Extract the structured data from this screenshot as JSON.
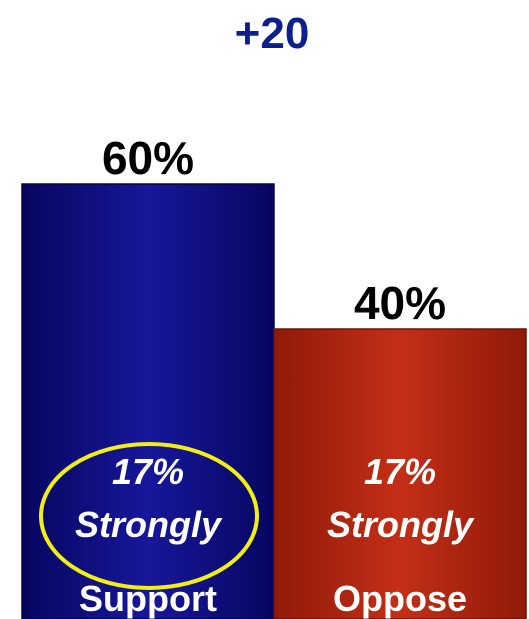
{
  "chart_data": {
    "type": "bar",
    "title": "+20",
    "categories": [
      "Support",
      "Oppose"
    ],
    "values": [
      60,
      40
    ],
    "value_labels": [
      "60%",
      "40%"
    ],
    "inner_labels": [
      {
        "line1": "17%",
        "line2": "Strongly"
      },
      {
        "line1": "17%",
        "line2": "Strongly"
      }
    ],
    "ylim": [
      0,
      60
    ],
    "grid": false,
    "highlight": {
      "bar": 0,
      "shape": "ellipse",
      "color": "#f2ef16"
    },
    "colors": {
      "title": "#0d1f8c",
      "support": "#0b0b7a",
      "support_light": "#2a2aa8",
      "oppose": "#a41f0c",
      "oppose_light": "#c9331c"
    }
  }
}
